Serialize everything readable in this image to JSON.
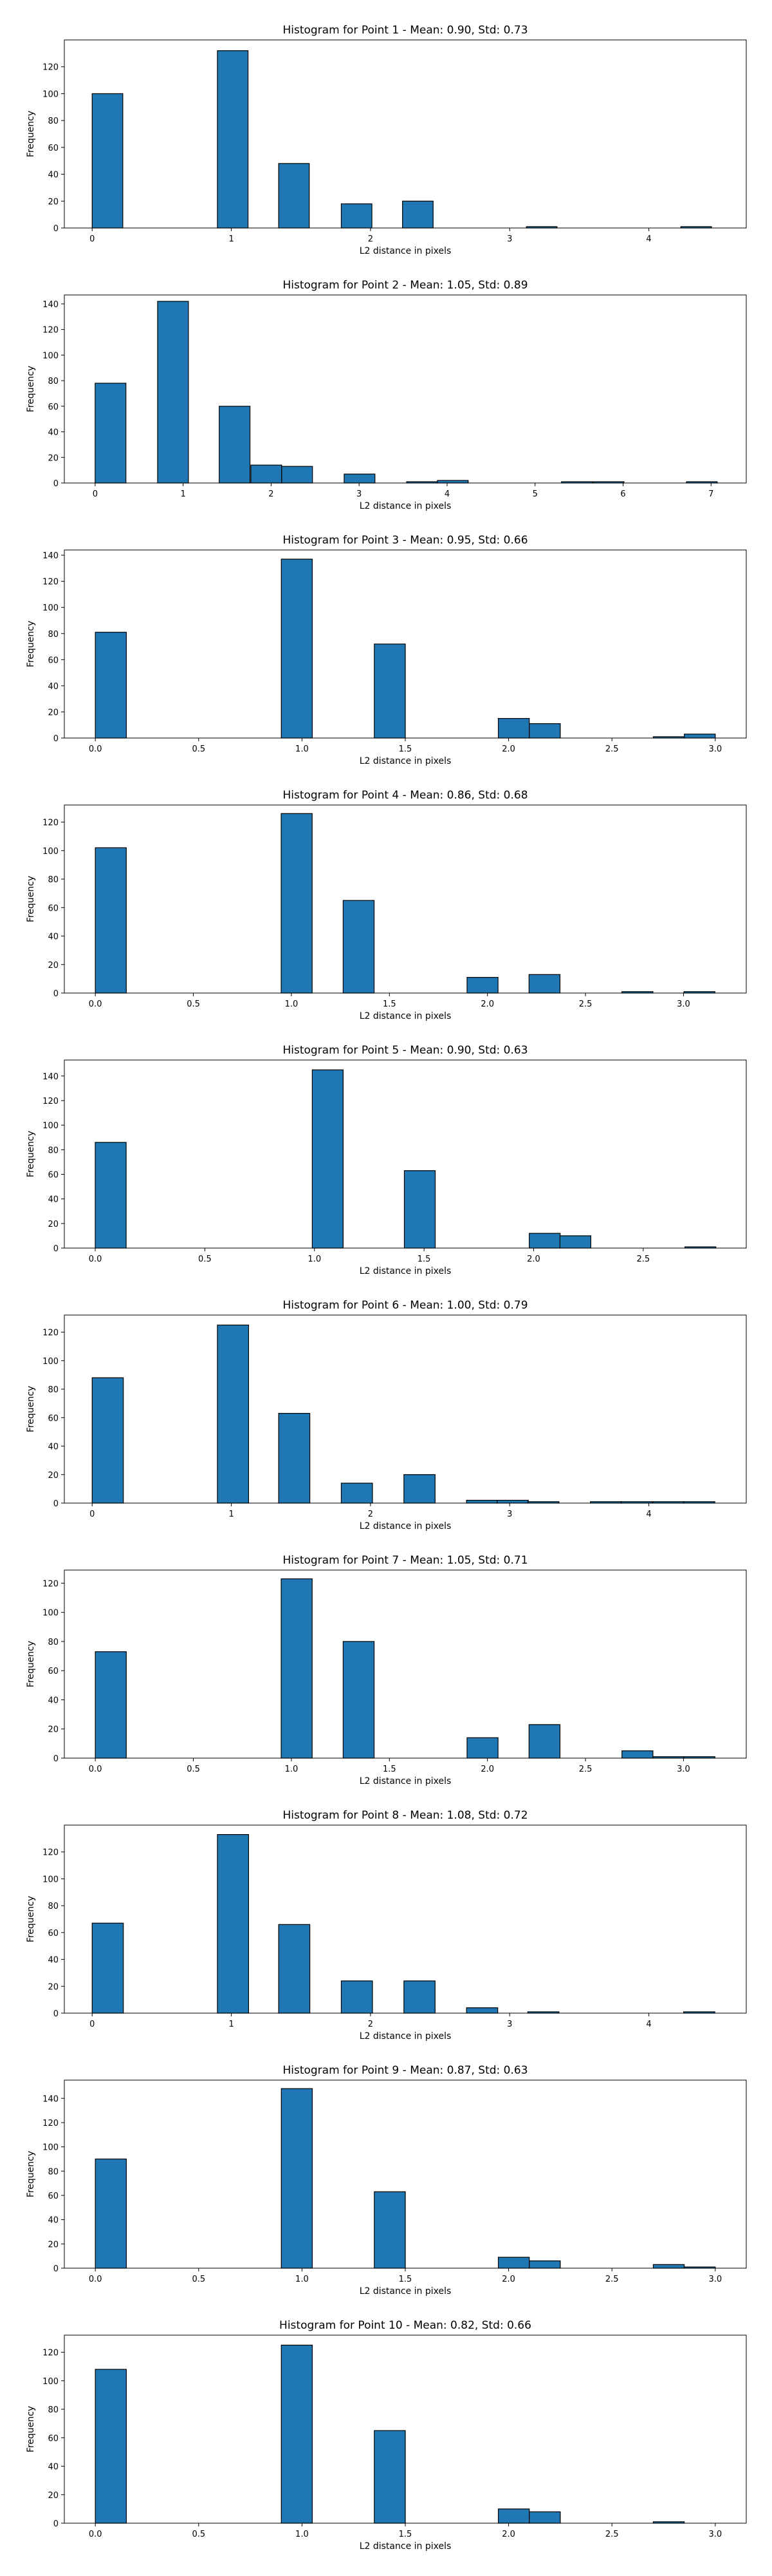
{
  "chart_data": [
    {
      "type": "bar",
      "title": "Histogram for Point 1 - Mean: 0.90, Std: 0.73",
      "xlabel": "L2 distance in pixels",
      "ylabel": "Frequency",
      "bin_width": 0.22,
      "xlim": [
        -0.2,
        4.7
      ],
      "ylim": [
        0,
        140
      ],
      "xticks": [
        0,
        1,
        2,
        3,
        4
      ],
      "yticks": [
        0,
        20,
        40,
        60,
        80,
        100,
        120
      ],
      "grid": false,
      "color": "#1f77b4",
      "bins": [
        {
          "start": 0.0,
          "value": 100
        },
        {
          "start": 0.9,
          "value": 132
        },
        {
          "start": 1.34,
          "value": 48
        },
        {
          "start": 1.79,
          "value": 18
        },
        {
          "start": 2.23,
          "value": 20
        },
        {
          "start": 3.12,
          "value": 1
        },
        {
          "start": 4.23,
          "value": 1
        }
      ]
    },
    {
      "type": "bar",
      "title": "Histogram for Point 2 - Mean: 1.05, Std: 0.89",
      "xlabel": "L2 distance in pixels",
      "ylabel": "Frequency",
      "bin_width": 0.35,
      "xlim": [
        -0.35,
        7.4
      ],
      "ylim": [
        0,
        147
      ],
      "xticks": [
        0,
        1,
        2,
        3,
        4,
        5,
        6,
        7
      ],
      "yticks": [
        0,
        20,
        40,
        60,
        80,
        100,
        120,
        140
      ],
      "grid": false,
      "color": "#1f77b4",
      "bins": [
        {
          "start": 0.0,
          "value": 78
        },
        {
          "start": 0.71,
          "value": 142
        },
        {
          "start": 1.41,
          "value": 60
        },
        {
          "start": 1.77,
          "value": 14
        },
        {
          "start": 2.12,
          "value": 13
        },
        {
          "start": 2.83,
          "value": 7
        },
        {
          "start": 3.54,
          "value": 1
        },
        {
          "start": 3.89,
          "value": 2
        },
        {
          "start": 5.3,
          "value": 1
        },
        {
          "start": 5.66,
          "value": 1
        },
        {
          "start": 6.72,
          "value": 1
        }
      ]
    },
    {
      "type": "bar",
      "title": "Histogram for Point 3 - Mean: 0.95, Std: 0.66",
      "xlabel": "L2 distance in pixels",
      "ylabel": "Frequency",
      "bin_width": 0.15,
      "xlim": [
        -0.15,
        3.15
      ],
      "ylim": [
        0,
        144
      ],
      "xticks": [
        0.0,
        0.5,
        1.0,
        1.5,
        2.0,
        2.5,
        3.0
      ],
      "xtick_labels": [
        "0.0",
        "0.5",
        "1.0",
        "1.5",
        "2.0",
        "2.5",
        "3.0"
      ],
      "yticks": [
        0,
        20,
        40,
        60,
        80,
        100,
        120,
        140
      ],
      "grid": false,
      "color": "#1f77b4",
      "bins": [
        {
          "start": 0.0,
          "value": 81
        },
        {
          "start": 0.9,
          "value": 137
        },
        {
          "start": 1.35,
          "value": 72
        },
        {
          "start": 1.95,
          "value": 15
        },
        {
          "start": 2.1,
          "value": 11
        },
        {
          "start": 2.7,
          "value": 1
        },
        {
          "start": 2.85,
          "value": 3
        }
      ]
    },
    {
      "type": "bar",
      "title": "Histogram for Point 4 - Mean: 0.86, Std: 0.68",
      "xlabel": "L2 distance in pixels",
      "ylabel": "Frequency",
      "bin_width": 0.158,
      "xlim": [
        -0.158,
        3.32
      ],
      "ylim": [
        0,
        132
      ],
      "xticks": [
        0.0,
        0.5,
        1.0,
        1.5,
        2.0,
        2.5,
        3.0
      ],
      "xtick_labels": [
        "0.0",
        "0.5",
        "1.0",
        "1.5",
        "2.0",
        "2.5",
        "3.0"
      ],
      "yticks": [
        0,
        20,
        40,
        60,
        80,
        100,
        120
      ],
      "grid": false,
      "color": "#1f77b4",
      "bins": [
        {
          "start": 0.0,
          "value": 102
        },
        {
          "start": 0.948,
          "value": 126
        },
        {
          "start": 1.264,
          "value": 65
        },
        {
          "start": 1.896,
          "value": 11
        },
        {
          "start": 2.212,
          "value": 13
        },
        {
          "start": 2.686,
          "value": 1
        },
        {
          "start": 3.002,
          "value": 1
        }
      ]
    },
    {
      "type": "bar",
      "title": "Histogram for Point 5 - Mean: 0.90, Std: 0.63",
      "xlabel": "L2 distance in pixels",
      "ylabel": "Frequency",
      "bin_width": 0.141,
      "xlim": [
        -0.141,
        2.97
      ],
      "ylim": [
        0,
        153
      ],
      "xticks": [
        0.0,
        0.5,
        1.0,
        1.5,
        2.0,
        2.5
      ],
      "xtick_labels": [
        "0.0",
        "0.5",
        "1.0",
        "1.5",
        "2.0",
        "2.5"
      ],
      "yticks": [
        0,
        20,
        40,
        60,
        80,
        100,
        120,
        140
      ],
      "grid": false,
      "color": "#1f77b4",
      "bins": [
        {
          "start": 0.0,
          "value": 86
        },
        {
          "start": 0.99,
          "value": 145
        },
        {
          "start": 1.41,
          "value": 63
        },
        {
          "start": 1.98,
          "value": 12
        },
        {
          "start": 2.12,
          "value": 10
        },
        {
          "start": 2.69,
          "value": 1
        }
      ]
    },
    {
      "type": "bar",
      "title": "Histogram for Point 6 - Mean: 1.00, Std: 0.79",
      "xlabel": "L2 distance in pixels",
      "ylabel": "Frequency",
      "bin_width": 0.224,
      "xlim": [
        -0.2,
        4.7
      ],
      "ylim": [
        0,
        132
      ],
      "xticks": [
        0,
        1,
        2,
        3,
        4
      ],
      "yticks": [
        0,
        20,
        40,
        60,
        80,
        100,
        120
      ],
      "grid": false,
      "color": "#1f77b4",
      "bins": [
        {
          "start": 0.0,
          "value": 88
        },
        {
          "start": 0.9,
          "value": 125
        },
        {
          "start": 1.34,
          "value": 63
        },
        {
          "start": 1.79,
          "value": 14
        },
        {
          "start": 2.24,
          "value": 20
        },
        {
          "start": 2.69,
          "value": 2
        },
        {
          "start": 2.91,
          "value": 2
        },
        {
          "start": 3.13,
          "value": 1
        },
        {
          "start": 3.58,
          "value": 1
        },
        {
          "start": 3.8,
          "value": 1
        },
        {
          "start": 4.03,
          "value": 1
        },
        {
          "start": 4.25,
          "value": 1
        }
      ]
    },
    {
      "type": "bar",
      "title": "Histogram for Point 7 - Mean: 1.05, Std: 0.71",
      "xlabel": "L2 distance in pixels",
      "ylabel": "Frequency",
      "bin_width": 0.158,
      "xlim": [
        -0.158,
        3.32
      ],
      "ylim": [
        0,
        129
      ],
      "xticks": [
        0.0,
        0.5,
        1.0,
        1.5,
        2.0,
        2.5,
        3.0
      ],
      "xtick_labels": [
        "0.0",
        "0.5",
        "1.0",
        "1.5",
        "2.0",
        "2.5",
        "3.0"
      ],
      "yticks": [
        0,
        20,
        40,
        60,
        80,
        100,
        120
      ],
      "grid": false,
      "color": "#1f77b4",
      "bins": [
        {
          "start": 0.0,
          "value": 73
        },
        {
          "start": 0.948,
          "value": 123
        },
        {
          "start": 1.264,
          "value": 80
        },
        {
          "start": 1.896,
          "value": 14
        },
        {
          "start": 2.212,
          "value": 23
        },
        {
          "start": 2.686,
          "value": 5
        },
        {
          "start": 2.844,
          "value": 1
        },
        {
          "start": 3.002,
          "value": 1
        }
      ]
    },
    {
      "type": "bar",
      "title": "Histogram for Point 8 - Mean: 1.08, Std: 0.72",
      "xlabel": "L2 distance in pixels",
      "ylabel": "Frequency",
      "bin_width": 0.224,
      "xlim": [
        -0.2,
        4.7
      ],
      "ylim": [
        0,
        140
      ],
      "xticks": [
        0,
        1,
        2,
        3,
        4
      ],
      "yticks": [
        0,
        20,
        40,
        60,
        80,
        100,
        120
      ],
      "grid": false,
      "color": "#1f77b4",
      "bins": [
        {
          "start": 0.0,
          "value": 67
        },
        {
          "start": 0.9,
          "value": 133
        },
        {
          "start": 1.34,
          "value": 66
        },
        {
          "start": 1.79,
          "value": 24
        },
        {
          "start": 2.24,
          "value": 24
        },
        {
          "start": 2.69,
          "value": 4
        },
        {
          "start": 3.13,
          "value": 1
        },
        {
          "start": 4.25,
          "value": 1
        }
      ]
    },
    {
      "type": "bar",
      "title": "Histogram for Point 9 - Mean: 0.87, Std: 0.63",
      "xlabel": "L2 distance in pixels",
      "ylabel": "Frequency",
      "bin_width": 0.15,
      "xlim": [
        -0.15,
        3.15
      ],
      "ylim": [
        0,
        155
      ],
      "xticks": [
        0.0,
        0.5,
        1.0,
        1.5,
        2.0,
        2.5,
        3.0
      ],
      "xtick_labels": [
        "0.0",
        "0.5",
        "1.0",
        "1.5",
        "2.0",
        "2.5",
        "3.0"
      ],
      "yticks": [
        0,
        20,
        40,
        60,
        80,
        100,
        120,
        140
      ],
      "grid": false,
      "color": "#1f77b4",
      "bins": [
        {
          "start": 0.0,
          "value": 90
        },
        {
          "start": 0.9,
          "value": 148
        },
        {
          "start": 1.35,
          "value": 63
        },
        {
          "start": 1.95,
          "value": 9
        },
        {
          "start": 2.1,
          "value": 6
        },
        {
          "start": 2.7,
          "value": 3
        },
        {
          "start": 2.85,
          "value": 1
        }
      ]
    },
    {
      "type": "bar",
      "title": "Histogram for Point 10 - Mean: 0.82, Std: 0.66",
      "xlabel": "L2 distance in pixels",
      "ylabel": "Frequency",
      "bin_width": 0.15,
      "xlim": [
        -0.15,
        3.15
      ],
      "ylim": [
        0,
        132
      ],
      "xticks": [
        0.0,
        0.5,
        1.0,
        1.5,
        2.0,
        2.5,
        3.0
      ],
      "xtick_labels": [
        "0.0",
        "0.5",
        "1.0",
        "1.5",
        "2.0",
        "2.5",
        "3.0"
      ],
      "yticks": [
        0,
        20,
        40,
        60,
        80,
        100,
        120
      ],
      "grid": false,
      "color": "#1f77b4",
      "bins": [
        {
          "start": 0.0,
          "value": 108
        },
        {
          "start": 0.9,
          "value": 125
        },
        {
          "start": 1.35,
          "value": 65
        },
        {
          "start": 1.95,
          "value": 10
        },
        {
          "start": 2.1,
          "value": 8
        },
        {
          "start": 2.7,
          "value": 1
        }
      ]
    }
  ]
}
